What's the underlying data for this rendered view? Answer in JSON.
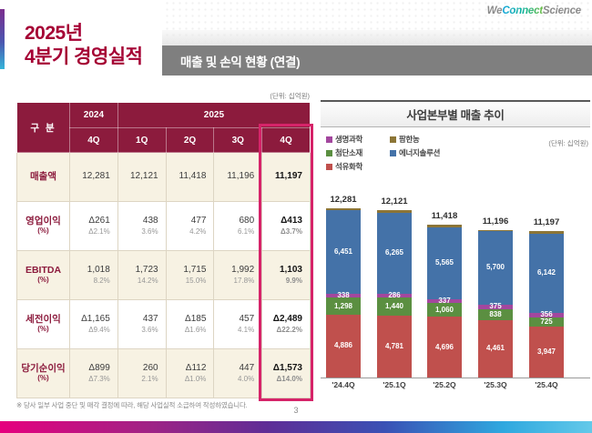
{
  "header": {
    "title_line1": "2025년",
    "title_line2": "4분기 경영실적",
    "logo_we": "We",
    "logo_connect": "Connect",
    "logo_science": "Science",
    "section_title": "매출 및 손익 현황 (연결)"
  },
  "colors": {
    "brand": "#a50034",
    "table_header": "#8c1b3d",
    "highlight_border": "#d62369",
    "section_bar": "#7f7f7f",
    "row_cream": "#f7f2e3"
  },
  "table": {
    "unit_label": "(단위: 십억원)",
    "corner_label": "구 분",
    "col_group_2024": "2024",
    "col_group_2025": "2025",
    "quarter_headers": [
      "4Q",
      "1Q",
      "2Q",
      "3Q",
      "4Q"
    ],
    "highlight_col_index": 4,
    "rows": [
      {
        "label": "매출액",
        "sub": "",
        "values": [
          "12,281",
          "12,121",
          "11,418",
          "11,196",
          "11,197"
        ],
        "subvalues": [
          "",
          "",
          "",
          "",
          ""
        ]
      },
      {
        "label": "영업이익",
        "sub": "(%)",
        "values": [
          "Δ261",
          "438",
          "477",
          "680",
          "Δ413"
        ],
        "subvalues": [
          "Δ2.1%",
          "3.6%",
          "4.2%",
          "6.1%",
          "Δ3.7%"
        ]
      },
      {
        "label": "EBITDA",
        "sub": "(%)",
        "values": [
          "1,018",
          "1,723",
          "1,715",
          "1,992",
          "1,103"
        ],
        "subvalues": [
          "8.2%",
          "14.2%",
          "15.0%",
          "17.8%",
          "9.9%"
        ]
      },
      {
        "label": "세전이익",
        "sub": "(%)",
        "values": [
          "Δ1,165",
          "437",
          "Δ185",
          "457",
          "Δ2,489"
        ],
        "subvalues": [
          "Δ9.4%",
          "3.6%",
          "Δ1.6%",
          "4.1%",
          "Δ22.2%"
        ]
      },
      {
        "label": "당기순이익",
        "sub": "(%)",
        "values": [
          "Δ899",
          "260",
          "Δ112",
          "447",
          "Δ1,573"
        ],
        "subvalues": [
          "Δ7.3%",
          "2.1%",
          "Δ1.0%",
          "4.0%",
          "Δ14.0%"
        ]
      }
    ]
  },
  "footnote": "※ 당사 일부 사업 중단 및 매각 결정에 따라, 해당 사업실적 소급하여 작성하였습니다.",
  "page_number": "3",
  "chart_data": {
    "type": "bar",
    "stacked": true,
    "title": "사업본부별 매출 추이",
    "unit_label": "(단위: 십억원)",
    "categories": [
      "'24.4Q",
      "'25.1Q",
      "'25.2Q",
      "'25.3Q",
      "'25.4Q"
    ],
    "totals": [
      12281,
      12121,
      11418,
      11196,
      11197
    ],
    "total_labels": [
      "12,281",
      "12,121",
      "11,418",
      "11,196",
      "11,197"
    ],
    "series": [
      {
        "name": "석유화학",
        "color": "#c0504d",
        "values": [
          4886,
          4781,
          4696,
          4461,
          3947
        ]
      },
      {
        "name": "첨단소재",
        "color": "#5b8f41",
        "values": [
          1298,
          1440,
          1060,
          838,
          725
        ]
      },
      {
        "name": "생명과학",
        "color": "#a3479e",
        "values": [
          338,
          286,
          337,
          375,
          356
        ]
      },
      {
        "name": "에너지솔루션",
        "color": "#4472a8",
        "values": [
          6451,
          6265,
          5565,
          5700,
          6142
        ]
      },
      {
        "name": "팜한농",
        "color": "#8c7536",
        "values": [
          165,
          246,
          242,
          102,
          185
        ]
      }
    ],
    "legend_columns": [
      [
        "생명과학",
        "첨단소재",
        "석유화학"
      ],
      [
        "팜한농",
        "에너지솔루션"
      ]
    ],
    "legend_position": "top-left",
    "grid": false,
    "ylim": [
      0,
      13500
    ]
  }
}
